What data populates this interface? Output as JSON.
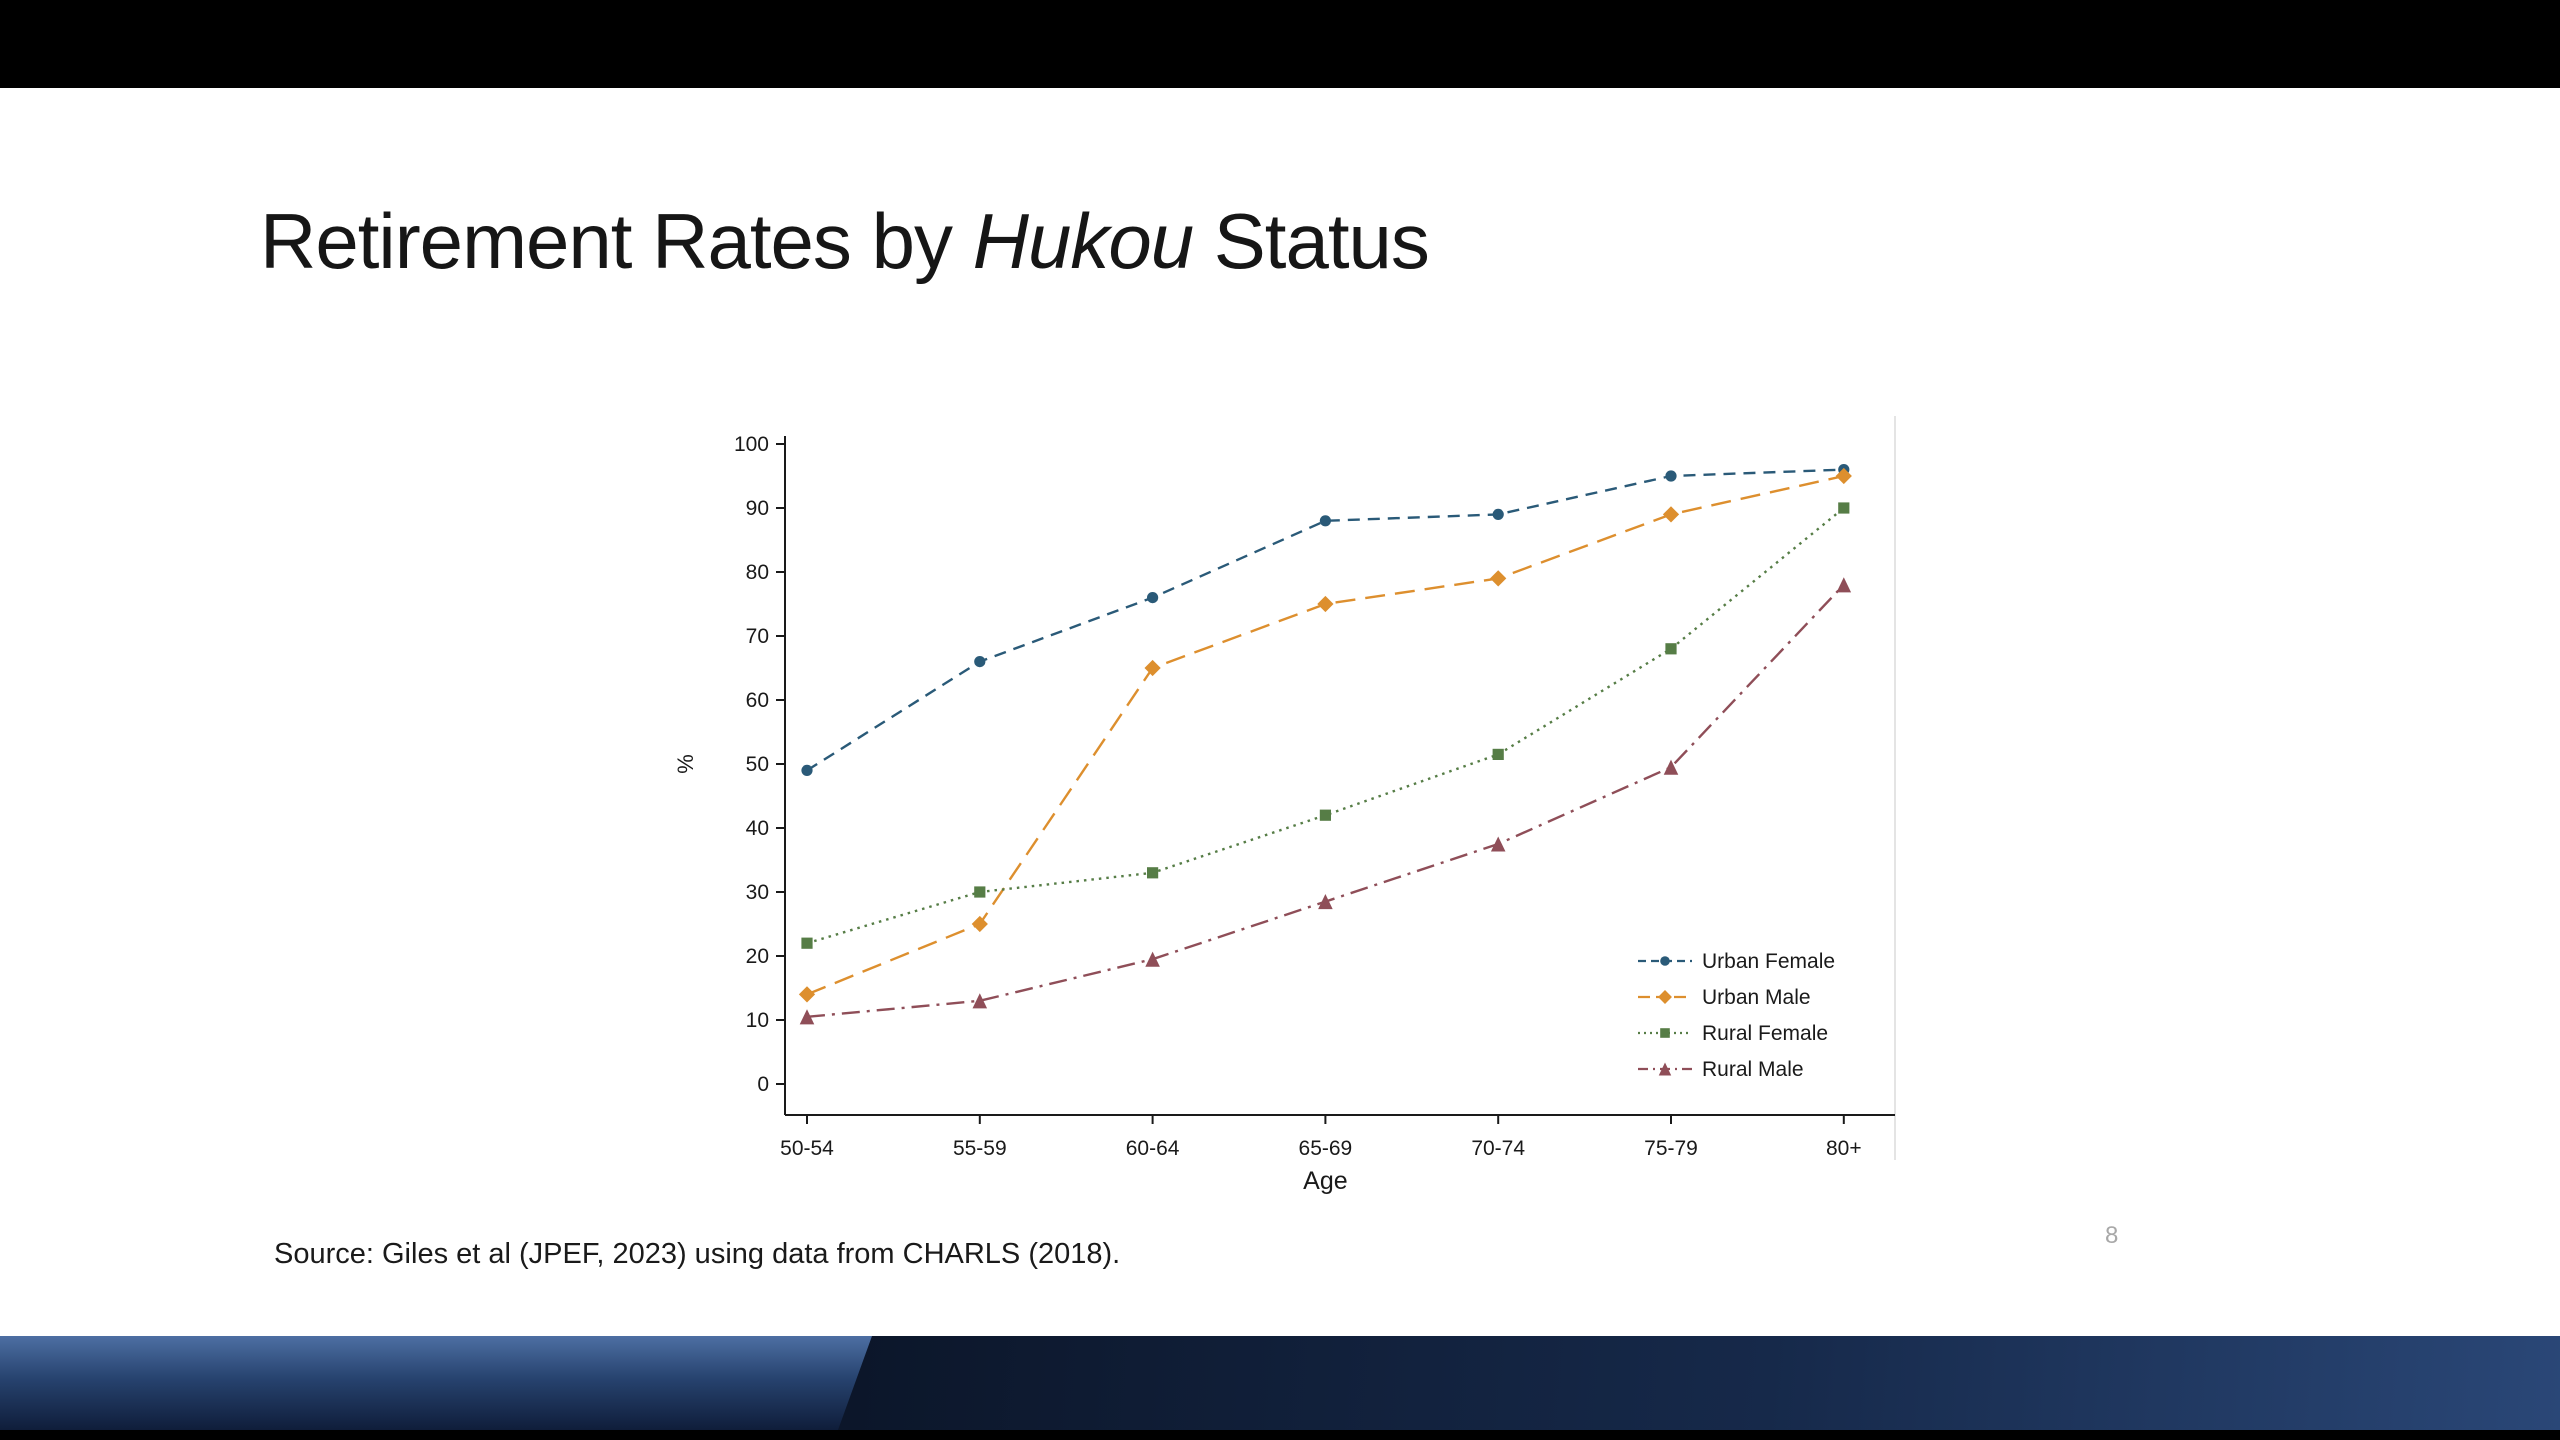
{
  "slide": {
    "title_regular_1": "Retirement Rates by ",
    "title_italic": "Hukou",
    "title_regular_2": " Status",
    "source": "Source: Giles et al (JPEF, 2023) using data from CHARLS (2018).",
    "page_number": "8"
  },
  "chart_data": {
    "type": "line",
    "title": "",
    "xlabel": "Age",
    "ylabel": "%",
    "ylim": [
      0,
      100
    ],
    "yticks": [
      0,
      10,
      20,
      30,
      40,
      50,
      60,
      70,
      80,
      90,
      100
    ],
    "grid": false,
    "legend_position": "inside-bottom-right",
    "categories": [
      "50-54",
      "55-59",
      "60-64",
      "65-69",
      "70-74",
      "75-79",
      "80+"
    ],
    "series": [
      {
        "name": "Urban Female",
        "values": [
          49,
          66,
          76,
          88,
          89,
          95,
          96
        ],
        "color": "#2a5a78",
        "marker": "circle",
        "dash": "dashed"
      },
      {
        "name": "Urban Male",
        "values": [
          14,
          25,
          65,
          75,
          79,
          89,
          95
        ],
        "color": "#dd8f2e",
        "marker": "diamond",
        "dash": "long-dash"
      },
      {
        "name": "Rural Female",
        "values": [
          22,
          30,
          33,
          42,
          51.5,
          68,
          90
        ],
        "color": "#567d46",
        "marker": "square",
        "dash": "dotted"
      },
      {
        "name": "Rural Male",
        "values": [
          10.5,
          13,
          19.5,
          28.5,
          37.5,
          49.5,
          78
        ],
        "color": "#8f4e58",
        "marker": "triangle",
        "dash": "dash-dot"
      }
    ]
  }
}
